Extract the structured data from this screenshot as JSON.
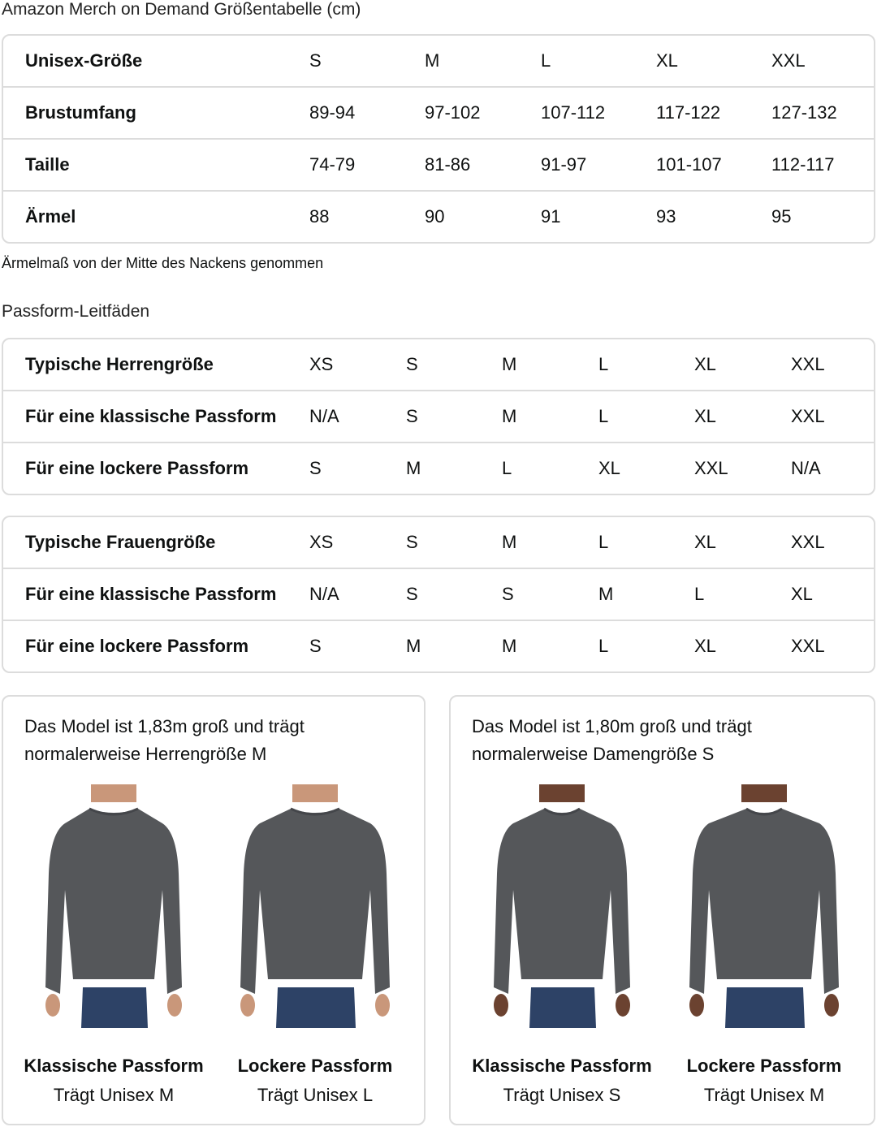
{
  "title": "Amazon Merch on Demand Größentabelle (cm)",
  "unisex_table": {
    "rows": [
      {
        "label": "Unisex-Größe",
        "values": [
          "S",
          "M",
          "L",
          "XL",
          "XXL"
        ]
      },
      {
        "label": "Brustumfang",
        "values": [
          "89-94",
          "97-102",
          "107-112",
          "117-122",
          "127-132"
        ]
      },
      {
        "label": "Taille",
        "values": [
          "74-79",
          "81-86",
          "91-97",
          "101-107",
          "112-117"
        ]
      },
      {
        "label": "Ärmel",
        "values": [
          "88",
          "90",
          "91",
          "93",
          "95"
        ]
      }
    ]
  },
  "sleeve_note": "Ärmelmaß von der Mitte des Nackens genommen",
  "fit_heading": "Passform-Leitfäden",
  "men_table": {
    "rows": [
      {
        "label": "Typische Herrengröße",
        "values": [
          "XS",
          "S",
          "M",
          "L",
          "XL",
          "XXL"
        ]
      },
      {
        "label": "Für eine klassische Passform",
        "values": [
          "N/A",
          "S",
          "M",
          "L",
          "XL",
          "XXL"
        ]
      },
      {
        "label": "Für eine lockere Passform",
        "values": [
          "S",
          "M",
          "L",
          "XL",
          "XXL",
          "N/A"
        ]
      }
    ]
  },
  "women_table": {
    "rows": [
      {
        "label": "Typische Frauengröße",
        "values": [
          "XS",
          "S",
          "M",
          "L",
          "XL",
          "XXL"
        ]
      },
      {
        "label": "Für eine klassische Passform",
        "values": [
          "N/A",
          "S",
          "S",
          "M",
          "L",
          "XL"
        ]
      },
      {
        "label": "Für eine lockere Passform",
        "values": [
          "S",
          "M",
          "M",
          "L",
          "XL",
          "XXL"
        ]
      }
    ]
  },
  "cards": [
    {
      "caption": "Das Model ist 1,83m groß und trägt normalerweise Herrengröße M",
      "figures": [
        {
          "fit": "Klassische Passform",
          "wears": "Trägt Unisex M"
        },
        {
          "fit": "Lockere Passform",
          "wears": "Trägt Unisex L"
        }
      ]
    },
    {
      "caption": "Das Model ist 1,80m groß und trägt normalerweise Damengröße S",
      "figures": [
        {
          "fit": "Klassische Passform",
          "wears": "Trägt Unisex S"
        },
        {
          "fit": "Lockere Passform",
          "wears": "Trägt Unisex M"
        }
      ]
    }
  ],
  "colors": {
    "shirt": "#55575a",
    "jeans": "#2d4266",
    "skin_men": "#c9977a",
    "skin_women": "#6b4230",
    "border": "#dcdcdc"
  }
}
